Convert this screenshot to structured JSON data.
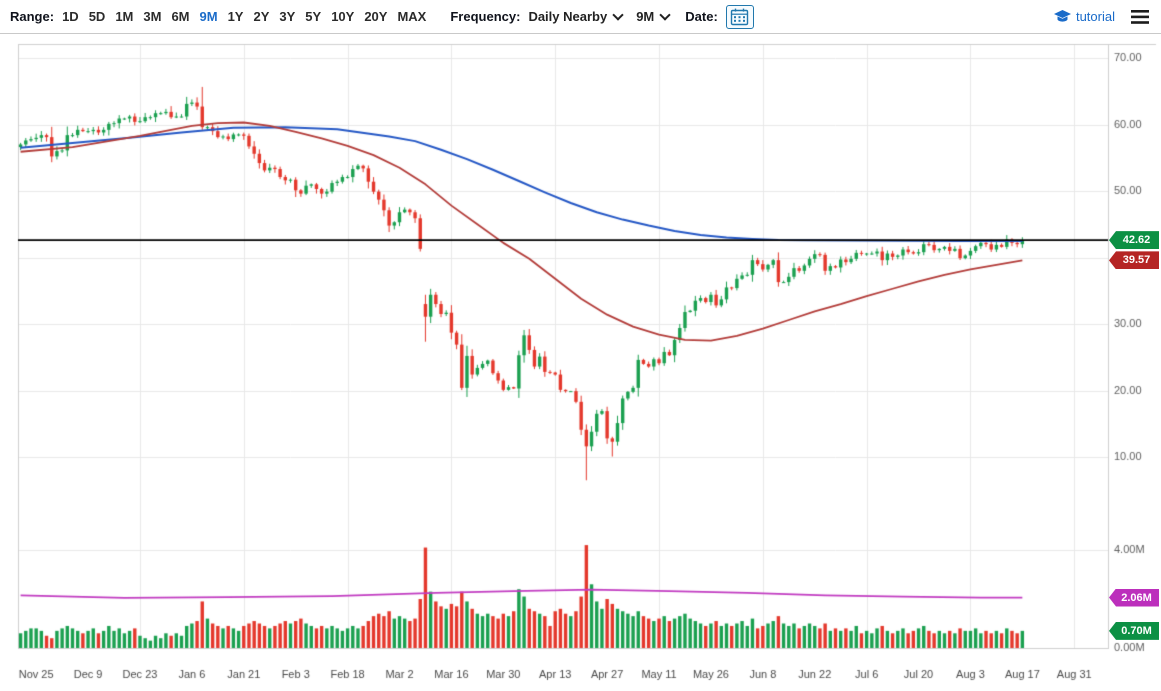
{
  "toolbar": {
    "range_label": "Range:",
    "range_options": [
      "1D",
      "5D",
      "1M",
      "3M",
      "6M",
      "9M",
      "1Y",
      "2Y",
      "3Y",
      "5Y",
      "10Y",
      "20Y",
      "MAX"
    ],
    "range_selected": "9M",
    "frequency_label": "Frequency:",
    "frequency_value": "Daily Nearby",
    "period_value": "9M",
    "date_label": "Date:",
    "tutorial_label": "tutorial"
  },
  "badges": {
    "last_price": "42.62",
    "ma_red_value": "39.57",
    "volume_ma": "2.06M",
    "last_volume": "0.70M"
  },
  "colors": {
    "accent_blue": "#1a6bc9",
    "calendar_blue": "#2178ad",
    "up_green": "#1ba050",
    "down_red": "#e4382c",
    "ma_blue": "#2457c5",
    "ma_red": "#b23b38",
    "volume_ma_purple": "#c13bc1",
    "badge_green": "#0c9044",
    "badge_red": "#b52524",
    "badge_purple": "#bc2fbc",
    "last_price_line": "#000000"
  },
  "chart_data": {
    "type": "candlestick_with_volume",
    "title": "",
    "price_ylim": [
      6,
      72
    ],
    "volume_ylim_millions": [
      0,
      4.4
    ],
    "grid": true,
    "price_axis_ticks": [
      "70.00",
      "60.00",
      "50.00",
      "30.00",
      "20.00",
      "10.00"
    ],
    "price_axis_values": [
      70,
      60,
      50,
      30,
      20,
      10
    ],
    "price_grid_values": [
      70,
      60,
      50,
      40,
      30,
      20,
      10
    ],
    "volume_axis_ticks": [
      "4.00M",
      "0.00M"
    ],
    "volume_axis_values": [
      4,
      0
    ],
    "x_labels": [
      "Nov 25",
      "Dec 9",
      "Dec 23",
      "Jan 6",
      "Jan 21",
      "Feb 3",
      "Feb 18",
      "Mar 2",
      "Mar 16",
      "Mar 30",
      "Apr 13",
      "Apr 27",
      "May 11",
      "May 26",
      "Jun 8",
      "Jun 22",
      "Jul 6",
      "Jul 20",
      "Aug 3",
      "Aug 17",
      "Aug 31"
    ],
    "x_label_slots": [
      3,
      13,
      23,
      33,
      43,
      53,
      63,
      73,
      83,
      93,
      103,
      113,
      123,
      133,
      143,
      153,
      163,
      173,
      183,
      193,
      203
    ],
    "x_grid_slots": [
      23,
      43,
      63,
      83,
      103,
      123,
      143,
      163,
      183,
      203
    ],
    "first_open": 56.6,
    "last_price": 42.62,
    "ma_red_last": 39.57,
    "volume_ma_last": 2.06,
    "last_volume": 0.7,
    "closes": [
      57.0,
      57.6,
      57.8,
      58.0,
      58.4,
      58.1,
      55.2,
      56.0,
      56.1,
      58.4,
      58.4,
      59.2,
      59.0,
      59.0,
      59.2,
      58.8,
      59.2,
      60.1,
      60.2,
      60.9,
      60.9,
      61.2,
      60.4,
      60.5,
      61.1,
      61.1,
      61.7,
      61.7,
      61.9,
      61.1,
      61.2,
      61.2,
      63.1,
      63.3,
      62.7,
      59.6,
      59.6,
      59.0,
      58.1,
      58.2,
      57.8,
      58.5,
      58.5,
      58.3,
      56.7,
      55.6,
      54.2,
      53.1,
      53.5,
      53.3,
      52.1,
      51.6,
      51.7,
      50.1,
      49.6,
      50.8,
      51.0,
      50.3,
      49.6,
      49.9,
      51.2,
      51.4,
      52.1,
      52.1,
      53.3,
      53.8,
      53.4,
      51.4,
      49.9,
      48.7,
      47.1,
      44.8,
      45.3,
      46.8,
      47.2,
      46.8,
      45.9,
      41.3,
      31.1,
      34.4,
      33.0,
      31.5,
      31.7,
      28.7,
      26.9,
      20.4,
      25.2,
      22.4,
      23.4,
      24.0,
      24.5,
      22.6,
      21.5,
      20.1,
      20.5,
      20.3,
      25.3,
      28.3,
      26.1,
      23.6,
      25.1,
      22.8,
      22.7,
      22.4,
      20.1,
      19.9,
      19.9,
      18.3,
      14.1,
      11.6,
      13.8,
      16.5,
      16.9,
      12.8,
      12.3,
      15.1,
      18.8,
      19.8,
      20.4,
      24.6,
      24.0,
      23.6,
      24.7,
      24.1,
      25.8,
      25.3,
      27.6,
      29.4,
      31.8,
      32.0,
      33.5,
      33.9,
      33.3,
      34.4,
      32.8,
      33.7,
      35.5,
      35.4,
      36.8,
      37.3,
      37.4,
      39.6,
      39.0,
      38.2,
      38.9,
      39.6,
      36.3,
      36.3,
      37.1,
      38.4,
      38.0,
      38.8,
      39.8,
      40.5,
      40.4,
      38.0,
      38.7,
      38.5,
      39.7,
      39.3,
      39.8,
      40.7,
      40.6,
      40.6,
      40.6,
      40.9,
      39.6,
      40.6,
      40.1,
      40.3,
      41.2,
      40.8,
      40.6,
      40.8,
      42.0,
      41.9,
      41.1,
      41.3,
      41.6,
      41.0,
      41.3,
      39.9,
      40.3,
      41.0,
      41.7,
      42.2,
      42.0,
      41.2,
      41.9,
      41.6,
      42.7,
      42.2,
      42.0,
      42.62
    ],
    "volumes": [
      0.6,
      0.7,
      0.8,
      0.8,
      0.7,
      0.5,
      0.4,
      0.7,
      0.8,
      0.9,
      0.8,
      0.7,
      0.6,
      0.7,
      0.8,
      0.6,
      0.7,
      0.9,
      0.7,
      0.8,
      0.6,
      0.7,
      0.8,
      0.5,
      0.4,
      0.3,
      0.5,
      0.4,
      0.6,
      0.5,
      0.6,
      0.5,
      0.9,
      1.0,
      1.1,
      1.9,
      1.2,
      1.0,
      0.9,
      0.8,
      0.9,
      0.8,
      0.7,
      0.9,
      1.0,
      1.1,
      1.0,
      0.9,
      0.8,
      0.9,
      1.0,
      1.1,
      1.0,
      1.1,
      1.2,
      1.0,
      0.9,
      0.8,
      0.9,
      0.8,
      0.9,
      0.8,
      0.7,
      0.8,
      0.9,
      0.8,
      0.9,
      1.1,
      1.3,
      1.4,
      1.3,
      1.5,
      1.2,
      1.3,
      1.2,
      1.1,
      1.2,
      2.0,
      4.1,
      2.3,
      1.9,
      1.7,
      1.6,
      1.8,
      1.7,
      2.3,
      1.9,
      1.6,
      1.4,
      1.3,
      1.4,
      1.3,
      1.2,
      1.4,
      1.3,
      1.5,
      2.4,
      2.1,
      1.6,
      1.5,
      1.4,
      1.3,
      0.9,
      1.5,
      1.6,
      1.4,
      1.3,
      1.5,
      2.1,
      4.2,
      2.6,
      1.9,
      1.6,
      2.0,
      1.8,
      1.6,
      1.5,
      1.4,
      1.3,
      1.5,
      1.3,
      1.2,
      1.1,
      1.2,
      1.3,
      1.1,
      1.2,
      1.3,
      1.4,
      1.2,
      1.1,
      1.0,
      0.9,
      1.0,
      1.1,
      0.9,
      1.0,
      0.9,
      1.0,
      1.1,
      0.9,
      1.2,
      0.8,
      0.9,
      1.0,
      1.1,
      1.3,
      1.0,
      0.9,
      1.0,
      0.8,
      0.9,
      1.0,
      0.9,
      0.8,
      1.0,
      0.7,
      0.8,
      0.7,
      0.8,
      0.7,
      0.9,
      0.6,
      0.7,
      0.6,
      0.8,
      0.9,
      0.7,
      0.6,
      0.7,
      0.8,
      0.6,
      0.7,
      0.8,
      0.9,
      0.7,
      0.6,
      0.7,
      0.6,
      0.7,
      0.6,
      0.8,
      0.7,
      0.7,
      0.8,
      0.6,
      0.7,
      0.6,
      0.7,
      0.6,
      0.8,
      0.7,
      0.6,
      0.7
    ],
    "overrides": [
      {
        "i": 35,
        "h": 65.65
      },
      {
        "i": 77,
        "l": 40.9
      },
      {
        "i": 78,
        "o": 33.0,
        "h": 34.4,
        "l": 27.34
      },
      {
        "i": 85,
        "l": 20.06
      },
      {
        "i": 109,
        "h": 14.9,
        "l": 6.5
      },
      {
        "i": 114,
        "l": 10.07
      }
    ],
    "ma_blue": [
      [
        0,
        56.5
      ],
      [
        10,
        57.2
      ],
      [
        21,
        58.0
      ],
      [
        31,
        58.8
      ],
      [
        41,
        59.5
      ],
      [
        51,
        59.6
      ],
      [
        61,
        59.3
      ],
      [
        71,
        58.2
      ],
      [
        76,
        57.5
      ],
      [
        81,
        56.2
      ],
      [
        86,
        54.8
      ],
      [
        91,
        53.2
      ],
      [
        96,
        51.5
      ],
      [
        101,
        49.8
      ],
      [
        106,
        48.2
      ],
      [
        111,
        46.8
      ],
      [
        116,
        45.7
      ],
      [
        121,
        44.8
      ],
      [
        126,
        44.0
      ],
      [
        131,
        43.4
      ],
      [
        136,
        43.0
      ],
      [
        141,
        42.8
      ],
      [
        146,
        42.65
      ],
      [
        151,
        42.6
      ],
      [
        161,
        42.55
      ],
      [
        171,
        42.5
      ],
      [
        181,
        42.5
      ],
      [
        193,
        42.5
      ]
    ],
    "ma_red": [
      [
        0,
        55.9
      ],
      [
        10,
        56.6
      ],
      [
        23,
        58.3
      ],
      [
        33,
        59.8
      ],
      [
        38,
        60.2
      ],
      [
        43,
        60.3
      ],
      [
        48,
        59.8
      ],
      [
        53,
        58.9
      ],
      [
        58,
        57.9
      ],
      [
        63,
        56.8
      ],
      [
        68,
        55.4
      ],
      [
        73,
        53.5
      ],
      [
        78,
        51.0
      ],
      [
        83,
        47.8
      ],
      [
        88,
        45.0
      ],
      [
        93,
        42.2
      ],
      [
        98,
        39.8
      ],
      [
        103,
        36.8
      ],
      [
        108,
        33.8
      ],
      [
        113,
        31.4
      ],
      [
        118,
        29.6
      ],
      [
        123,
        28.4
      ],
      [
        128,
        27.6
      ],
      [
        133,
        27.5
      ],
      [
        138,
        28.2
      ],
      [
        143,
        29.3
      ],
      [
        148,
        30.6
      ],
      [
        153,
        31.9
      ],
      [
        158,
        33.0
      ],
      [
        163,
        34.2
      ],
      [
        168,
        35.3
      ],
      [
        173,
        36.4
      ],
      [
        178,
        37.4
      ],
      [
        183,
        38.2
      ],
      [
        188,
        38.9
      ],
      [
        193,
        39.57
      ]
    ],
    "volume_ma": [
      [
        0,
        2.15
      ],
      [
        20,
        2.05
      ],
      [
        40,
        2.08
      ],
      [
        60,
        2.12
      ],
      [
        80,
        2.25
      ],
      [
        95,
        2.32
      ],
      [
        110,
        2.38
      ],
      [
        125,
        2.32
      ],
      [
        140,
        2.25
      ],
      [
        155,
        2.15
      ],
      [
        170,
        2.1
      ],
      [
        185,
        2.06
      ],
      [
        193,
        2.06
      ]
    ]
  }
}
